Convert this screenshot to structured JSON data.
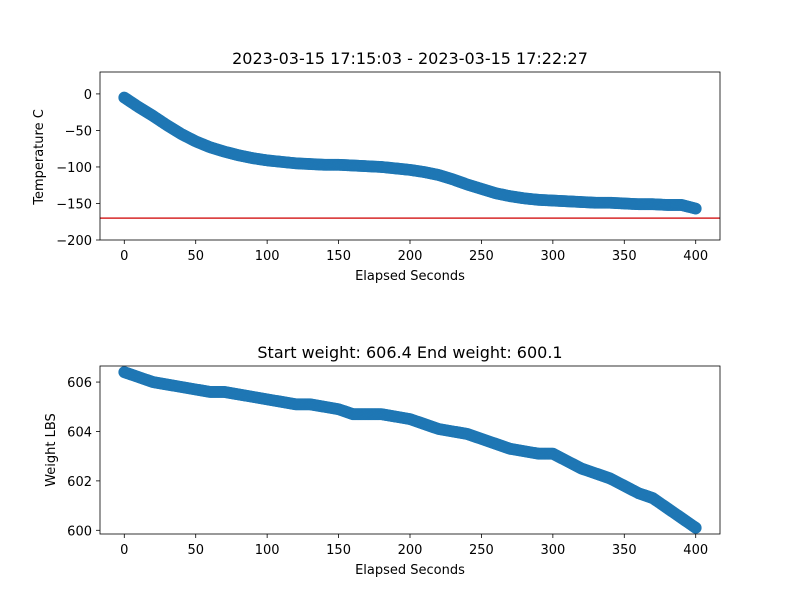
{
  "chart_data": [
    {
      "type": "scatter",
      "title": "2023-03-15 17:15:03 - 2023-03-15 17:22:27",
      "xlabel": "Elapsed Seconds",
      "ylabel": "Temperature C",
      "xlim": [
        -17,
        417
      ],
      "ylim": [
        -200,
        30
      ],
      "xticks": [
        0,
        50,
        100,
        150,
        200,
        250,
        300,
        350,
        400
      ],
      "yticks": [
        0,
        -50,
        -100,
        -150,
        -200
      ],
      "ytick_labels": [
        "0",
        "−50",
        "−100",
        "−150",
        "−200"
      ],
      "grid": false,
      "reference_line": {
        "orientation": "horizontal",
        "y": -170,
        "color": "#d62728"
      },
      "marker_color": "#1f77b4",
      "x": [
        0,
        10,
        20,
        30,
        40,
        50,
        60,
        70,
        80,
        90,
        100,
        110,
        120,
        130,
        140,
        150,
        160,
        170,
        180,
        190,
        200,
        210,
        220,
        230,
        240,
        250,
        260,
        270,
        280,
        290,
        300,
        310,
        320,
        330,
        340,
        350,
        360,
        370,
        380,
        390,
        400
      ],
      "y": [
        -5,
        -18,
        -30,
        -43,
        -55,
        -65,
        -73,
        -79,
        -84,
        -88,
        -91,
        -93,
        -95,
        -96,
        -97,
        -97,
        -98,
        -99,
        -100,
        -102,
        -104,
        -107,
        -111,
        -117,
        -124,
        -130,
        -136,
        -140,
        -143,
        -145,
        -146,
        -147,
        -148,
        -149,
        -149,
        -150,
        -151,
        -151,
        -152,
        -152,
        -157
      ]
    },
    {
      "type": "scatter",
      "title": "Start weight: 606.4 End weight: 600.1",
      "xlabel": "Elapsed Seconds",
      "ylabel": "Weight LBS",
      "xlim": [
        -17,
        417
      ],
      "ylim": [
        599.85,
        606.65
      ],
      "xticks": [
        0,
        50,
        100,
        150,
        200,
        250,
        300,
        350,
        400
      ],
      "yticks": [
        600,
        602,
        604,
        606
      ],
      "ytick_labels": [
        "600",
        "602",
        "604",
        "606"
      ],
      "grid": false,
      "marker_color": "#1f77b4",
      "x": [
        0,
        10,
        20,
        30,
        40,
        50,
        60,
        70,
        80,
        90,
        100,
        110,
        120,
        130,
        140,
        150,
        160,
        170,
        180,
        190,
        200,
        210,
        220,
        230,
        240,
        250,
        260,
        270,
        280,
        290,
        300,
        310,
        320,
        330,
        340,
        350,
        360,
        370,
        380,
        390,
        400
      ],
      "y": [
        606.4,
        606.2,
        606.0,
        605.9,
        605.8,
        605.7,
        605.6,
        605.6,
        605.5,
        605.4,
        605.3,
        605.2,
        605.1,
        605.1,
        605.0,
        604.9,
        604.7,
        604.7,
        604.7,
        604.6,
        604.5,
        604.3,
        604.1,
        604.0,
        603.9,
        603.7,
        603.5,
        603.3,
        603.2,
        603.1,
        603.1,
        602.8,
        602.5,
        602.3,
        602.1,
        601.8,
        601.5,
        601.3,
        600.9,
        600.5,
        600.1
      ]
    }
  ]
}
